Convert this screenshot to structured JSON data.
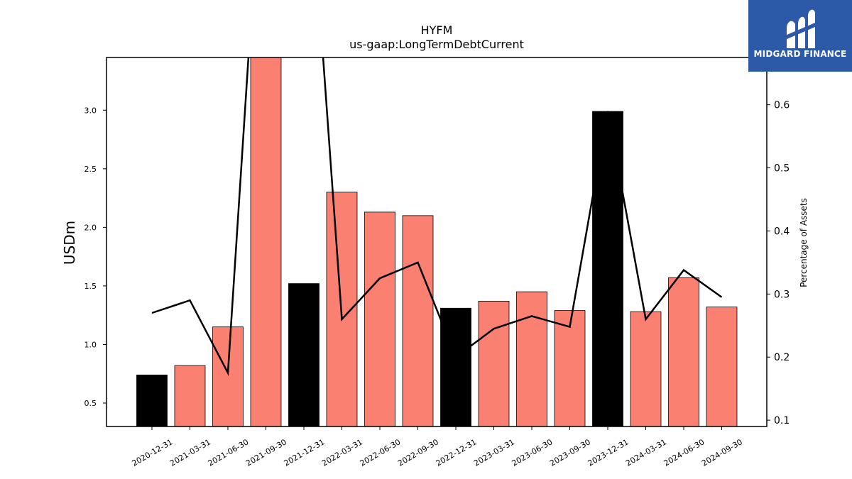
{
  "chart_data": {
    "type": "bar",
    "title": "HYFM",
    "subtitle": "us-gaap:LongTermDebtCurrent",
    "ylabel": "USDm",
    "ylabel_right": "Percentage of Assets",
    "categories": [
      "2020-12-31",
      "2021-03-31",
      "2021-06-30",
      "2021-09-30",
      "2021-12-31",
      "2022-03-31",
      "2022-06-30",
      "2022-09-30",
      "2022-12-31",
      "2023-03-31",
      "2023-06-30",
      "2023-09-30",
      "2023-12-31",
      "2024-03-31",
      "2024-06-30",
      "2024-09-30"
    ],
    "series": [
      {
        "type": "bar",
        "values": [
          0.74,
          0.82,
          1.15,
          3.45,
          1.52,
          2.3,
          2.13,
          2.1,
          1.31,
          1.37,
          1.45,
          1.29,
          2.99,
          1.28,
          1.57,
          1.32
        ],
        "colors": [
          "#000000",
          "#fa8072",
          "#fa8072",
          "#fa8072",
          "#000000",
          "#fa8072",
          "#fa8072",
          "#fa8072",
          "#000000",
          "#fa8072",
          "#fa8072",
          "#fa8072",
          "#000000",
          "#fa8072",
          "#fa8072",
          "#fa8072"
        ]
      },
      {
        "type": "line",
        "axis": "right",
        "values": [
          0.27,
          0.29,
          0.175,
          1.1,
          1.1,
          0.26,
          0.325,
          0.35,
          0.2,
          0.245,
          0.265,
          0.248,
          0.59,
          0.26,
          0.338,
          0.295
        ],
        "color": "#000000"
      }
    ],
    "ylim": [
      0.3,
      3.45
    ],
    "ylim_right": [
      0.09,
      0.675
    ],
    "yticks": [
      0.5,
      1.0,
      1.5,
      2.0,
      2.5,
      3.0
    ],
    "yticks_right": [
      0.1,
      0.2,
      0.3,
      0.4,
      0.5,
      0.6
    ],
    "grid": false
  },
  "logo": {
    "text": "MIDGARD FINANCE"
  }
}
